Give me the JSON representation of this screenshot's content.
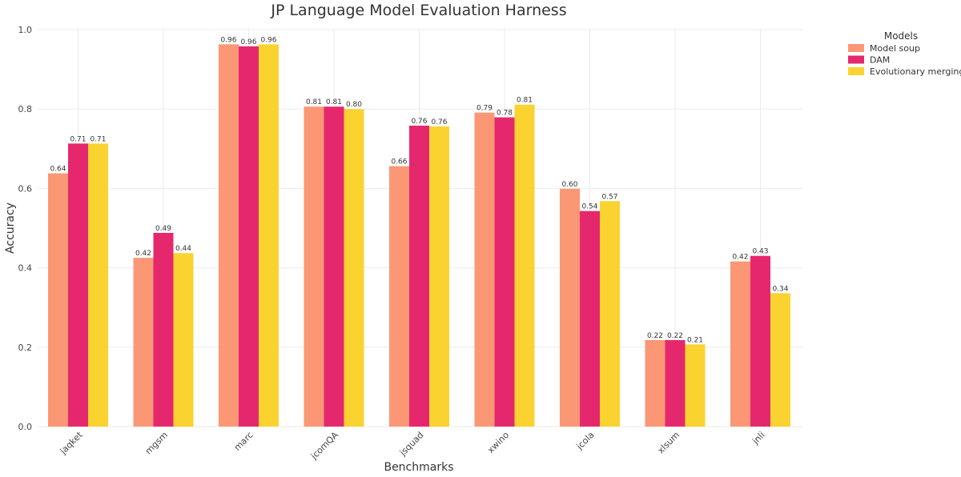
{
  "chart_data": {
    "type": "bar",
    "title": "JP Language Model Evaluation Harness",
    "xlabel": "Benchmarks",
    "ylabel": "Accuracy",
    "ylim": [
      0,
      1.0
    ],
    "yticks": [
      0.0,
      0.2,
      0.4,
      0.6,
      0.8,
      1.0
    ],
    "ytick_labels": [
      "0.0",
      "0.2",
      "0.4",
      "0.6",
      "0.8",
      "1.0"
    ],
    "grid": true,
    "legend_title": "Models",
    "legend_position": "top-right",
    "categories": [
      "jaqket",
      "mgsm",
      "marc",
      "jcomQA",
      "jsquad",
      "xwino",
      "jcola",
      "xlsum",
      "jnli"
    ],
    "series": [
      {
        "name": "Model soup",
        "color": "#fc9775",
        "values": [
          0.638,
          0.425,
          0.963,
          0.806,
          0.656,
          0.791,
          0.599,
          0.218,
          0.416
        ],
        "labels": [
          "0.64",
          "0.42",
          "0.96",
          "0.81",
          "0.66",
          "0.79",
          "0.60",
          "0.22",
          "0.42"
        ]
      },
      {
        "name": "DAM",
        "color": "#e5286e",
        "values": [
          0.713,
          0.488,
          0.958,
          0.806,
          0.758,
          0.779,
          0.543,
          0.218,
          0.43
        ],
        "labels": [
          "0.71",
          "0.49",
          "0.96",
          "0.81",
          "0.76",
          "0.78",
          "0.54",
          "0.22",
          "0.43"
        ]
      },
      {
        "name": "Evolutionary merging",
        "color": "#fbd330",
        "values": [
          0.713,
          0.437,
          0.963,
          0.8,
          0.756,
          0.811,
          0.568,
          0.207,
          0.336
        ],
        "labels": [
          "0.71",
          "0.44",
          "0.96",
          "0.80",
          "0.76",
          "0.81",
          "0.57",
          "0.21",
          "0.34"
        ]
      }
    ]
  }
}
